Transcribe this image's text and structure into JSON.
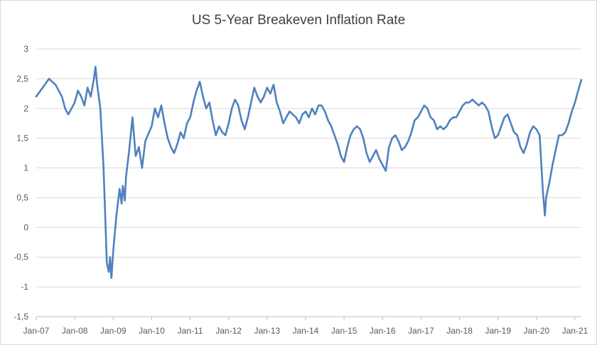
{
  "chart_data": {
    "type": "line",
    "title": "US 5-Year Breakeven Inflation Rate",
    "xlabel": "",
    "ylabel": "",
    "ylim": [
      -1.5,
      3
    ],
    "yticks": [
      {
        "value": 3,
        "label": "3"
      },
      {
        "value": 2.5,
        "label": "2,5"
      },
      {
        "value": 2,
        "label": "2"
      },
      {
        "value": 1.5,
        "label": "1,5"
      },
      {
        "value": 1,
        "label": "1"
      },
      {
        "value": 0.5,
        "label": "0,5"
      },
      {
        "value": 0,
        "label": "0"
      },
      {
        "value": -0.5,
        "label": "-0,5"
      },
      {
        "value": -1,
        "label": "-1"
      },
      {
        "value": -1.5,
        "label": "-1,5"
      }
    ],
    "xticks": [
      {
        "date": "2007-01",
        "label": "Jan-07"
      },
      {
        "date": "2008-01",
        "label": "Jan-08"
      },
      {
        "date": "2009-01",
        "label": "Jan-09"
      },
      {
        "date": "2010-01",
        "label": "Jan-10"
      },
      {
        "date": "2011-01",
        "label": "Jan-11"
      },
      {
        "date": "2012-01",
        "label": "Jan-12"
      },
      {
        "date": "2013-01",
        "label": "Jan-13"
      },
      {
        "date": "2014-01",
        "label": "Jan-14"
      },
      {
        "date": "2015-01",
        "label": "Jan-15"
      },
      {
        "date": "2016-01",
        "label": "Jan-16"
      },
      {
        "date": "2017-01",
        "label": "Jan-17"
      },
      {
        "date": "2018-01",
        "label": "Jan-18"
      },
      {
        "date": "2019-01",
        "label": "Jan-19"
      },
      {
        "date": "2020-01",
        "label": "Jan-20"
      },
      {
        "date": "2021-01",
        "label": "Jan-21"
      }
    ],
    "xrange": [
      "2007-01",
      "2021-03"
    ],
    "grid": {
      "horizontal": true,
      "vertical": false
    },
    "legend": "none",
    "series": [
      {
        "color": "#4f81bd",
        "points": [
          [
            "2007-01",
            2.2
          ],
          [
            "2007-03",
            2.35
          ],
          [
            "2007-05",
            2.5
          ],
          [
            "2007-07",
            2.4
          ],
          [
            "2007-09",
            2.2
          ],
          [
            "2007-10",
            2.0
          ],
          [
            "2007-11",
            1.9
          ],
          [
            "2008-01",
            2.1
          ],
          [
            "2008-02",
            2.3
          ],
          [
            "2008-03",
            2.2
          ],
          [
            "2008-04",
            2.05
          ],
          [
            "2008-05",
            2.35
          ],
          [
            "2008-06",
            2.2
          ],
          [
            "2008-07",
            2.5
          ],
          [
            "2008-07-15",
            2.7
          ],
          [
            "2008-08",
            2.4
          ],
          [
            "2008-09",
            2.0
          ],
          [
            "2008-10",
            1.0
          ],
          [
            "2008-10-20",
            0.0
          ],
          [
            "2008-11",
            -0.6
          ],
          [
            "2008-11-20",
            -0.75
          ],
          [
            "2008-12",
            -0.5
          ],
          [
            "2008-12-15",
            -0.85
          ],
          [
            "2009-01",
            -0.4
          ],
          [
            "2009-02",
            0.2
          ],
          [
            "2009-03",
            0.65
          ],
          [
            "2009-03-20",
            0.4
          ],
          [
            "2009-04",
            0.7
          ],
          [
            "2009-04-20",
            0.45
          ],
          [
            "2009-05",
            0.85
          ],
          [
            "2009-06",
            1.3
          ],
          [
            "2009-07",
            1.85
          ],
          [
            "2009-08",
            1.2
          ],
          [
            "2009-09",
            1.35
          ],
          [
            "2009-10",
            1.0
          ],
          [
            "2009-11",
            1.45
          ],
          [
            "2010-01",
            1.7
          ],
          [
            "2010-02",
            2.0
          ],
          [
            "2010-03",
            1.85
          ],
          [
            "2010-04",
            2.05
          ],
          [
            "2010-05",
            1.75
          ],
          [
            "2010-06",
            1.5
          ],
          [
            "2010-07",
            1.35
          ],
          [
            "2010-08",
            1.25
          ],
          [
            "2010-09",
            1.4
          ],
          [
            "2010-10",
            1.6
          ],
          [
            "2010-11",
            1.5
          ],
          [
            "2010-12",
            1.75
          ],
          [
            "2011-01",
            1.85
          ],
          [
            "2011-02",
            2.1
          ],
          [
            "2011-03",
            2.3
          ],
          [
            "2011-04",
            2.45
          ],
          [
            "2011-05",
            2.2
          ],
          [
            "2011-06",
            2.0
          ],
          [
            "2011-07",
            2.1
          ],
          [
            "2011-08",
            1.8
          ],
          [
            "2011-09",
            1.55
          ],
          [
            "2011-10",
            1.7
          ],
          [
            "2011-11",
            1.6
          ],
          [
            "2011-12",
            1.55
          ],
          [
            "2012-01",
            1.75
          ],
          [
            "2012-02",
            2.0
          ],
          [
            "2012-03",
            2.15
          ],
          [
            "2012-04",
            2.05
          ],
          [
            "2012-05",
            1.8
          ],
          [
            "2012-06",
            1.65
          ],
          [
            "2012-07",
            1.85
          ],
          [
            "2012-08",
            2.1
          ],
          [
            "2012-09",
            2.35
          ],
          [
            "2012-10",
            2.2
          ],
          [
            "2012-11",
            2.1
          ],
          [
            "2012-12",
            2.2
          ],
          [
            "2013-01",
            2.35
          ],
          [
            "2013-02",
            2.25
          ],
          [
            "2013-03",
            2.4
          ],
          [
            "2013-04",
            2.1
          ],
          [
            "2013-05",
            1.95
          ],
          [
            "2013-06",
            1.75
          ],
          [
            "2013-07",
            1.85
          ],
          [
            "2013-08",
            1.95
          ],
          [
            "2013-09",
            1.9
          ],
          [
            "2013-10",
            1.85
          ],
          [
            "2013-11",
            1.75
          ],
          [
            "2013-12",
            1.9
          ],
          [
            "2014-01",
            1.95
          ],
          [
            "2014-02",
            1.85
          ],
          [
            "2014-03",
            2.0
          ],
          [
            "2014-04",
            1.9
          ],
          [
            "2014-05",
            2.05
          ],
          [
            "2014-06",
            2.05
          ],
          [
            "2014-07",
            1.95
          ],
          [
            "2014-08",
            1.8
          ],
          [
            "2014-09",
            1.7
          ],
          [
            "2014-10",
            1.55
          ],
          [
            "2014-11",
            1.4
          ],
          [
            "2014-12",
            1.2
          ],
          [
            "2015-01",
            1.1
          ],
          [
            "2015-02",
            1.35
          ],
          [
            "2015-03",
            1.55
          ],
          [
            "2015-04",
            1.65
          ],
          [
            "2015-05",
            1.7
          ],
          [
            "2015-06",
            1.65
          ],
          [
            "2015-07",
            1.5
          ],
          [
            "2015-08",
            1.25
          ],
          [
            "2015-09",
            1.1
          ],
          [
            "2015-10",
            1.2
          ],
          [
            "2015-11",
            1.3
          ],
          [
            "2015-12",
            1.15
          ],
          [
            "2016-01",
            1.05
          ],
          [
            "2016-02",
            0.95
          ],
          [
            "2016-03",
            1.35
          ],
          [
            "2016-04",
            1.5
          ],
          [
            "2016-05",
            1.55
          ],
          [
            "2016-06",
            1.45
          ],
          [
            "2016-07",
            1.3
          ],
          [
            "2016-08",
            1.35
          ],
          [
            "2016-09",
            1.45
          ],
          [
            "2016-10",
            1.6
          ],
          [
            "2016-11",
            1.8
          ],
          [
            "2016-12",
            1.85
          ],
          [
            "2017-01",
            1.95
          ],
          [
            "2017-02",
            2.05
          ],
          [
            "2017-03",
            2.0
          ],
          [
            "2017-04",
            1.85
          ],
          [
            "2017-05",
            1.8
          ],
          [
            "2017-06",
            1.65
          ],
          [
            "2017-07",
            1.7
          ],
          [
            "2017-08",
            1.65
          ],
          [
            "2017-09",
            1.7
          ],
          [
            "2017-10",
            1.8
          ],
          [
            "2017-11",
            1.85
          ],
          [
            "2017-12",
            1.85
          ],
          [
            "2018-01",
            1.95
          ],
          [
            "2018-02",
            2.05
          ],
          [
            "2018-03",
            2.1
          ],
          [
            "2018-04",
            2.1
          ],
          [
            "2018-05",
            2.15
          ],
          [
            "2018-06",
            2.1
          ],
          [
            "2018-07",
            2.05
          ],
          [
            "2018-08",
            2.1
          ],
          [
            "2018-09",
            2.05
          ],
          [
            "2018-10",
            1.95
          ],
          [
            "2018-11",
            1.7
          ],
          [
            "2018-12",
            1.5
          ],
          [
            "2019-01",
            1.55
          ],
          [
            "2019-02",
            1.7
          ],
          [
            "2019-03",
            1.85
          ],
          [
            "2019-04",
            1.9
          ],
          [
            "2019-05",
            1.75
          ],
          [
            "2019-06",
            1.6
          ],
          [
            "2019-07",
            1.55
          ],
          [
            "2019-08",
            1.35
          ],
          [
            "2019-09",
            1.25
          ],
          [
            "2019-10",
            1.4
          ],
          [
            "2019-11",
            1.6
          ],
          [
            "2019-12",
            1.7
          ],
          [
            "2020-01",
            1.65
          ],
          [
            "2020-02",
            1.55
          ],
          [
            "2020-03",
            0.6
          ],
          [
            "2020-03-20",
            0.2
          ],
          [
            "2020-04",
            0.5
          ],
          [
            "2020-05",
            0.75
          ],
          [
            "2020-06",
            1.05
          ],
          [
            "2020-07",
            1.3
          ],
          [
            "2020-08",
            1.55
          ],
          [
            "2020-09",
            1.55
          ],
          [
            "2020-10",
            1.6
          ],
          [
            "2020-11",
            1.75
          ],
          [
            "2020-12",
            1.95
          ],
          [
            "2021-01",
            2.1
          ],
          [
            "2021-02",
            2.3
          ],
          [
            "2021-03",
            2.48
          ]
        ]
      }
    ]
  }
}
